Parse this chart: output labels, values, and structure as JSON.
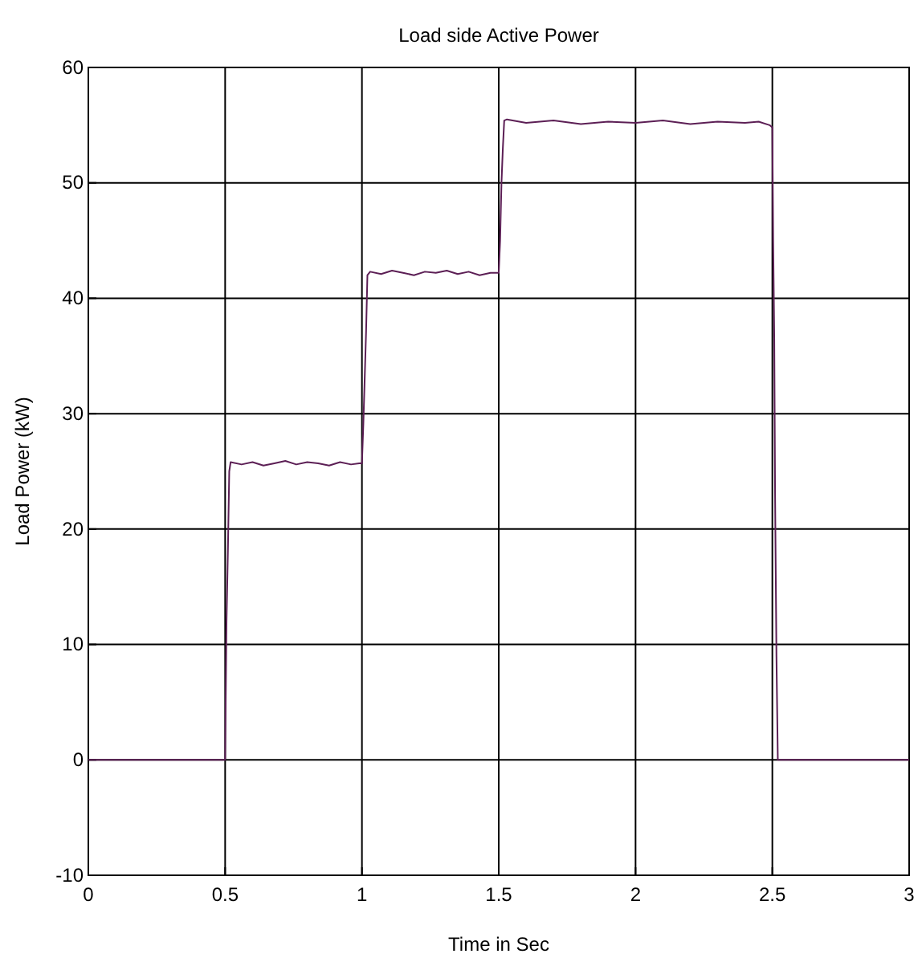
{
  "chart_data": {
    "type": "line",
    "title": "Load side Active Power",
    "xlabel": "Time in Sec",
    "ylabel": "Load Power (kW)",
    "xlim": [
      0,
      3
    ],
    "ylim": [
      -10,
      60
    ],
    "xticks": [
      0,
      0.5,
      1,
      1.5,
      2,
      2.5,
      3
    ],
    "yticks": [
      -10,
      0,
      10,
      20,
      30,
      40,
      50,
      60
    ],
    "grid": true,
    "line_style": "solid",
    "series": [
      {
        "color": "#5c1f55",
        "x": [
          0,
          0.5,
          0.502,
          0.505,
          0.51,
          0.515,
          0.52,
          0.56,
          0.6,
          0.64,
          0.68,
          0.72,
          0.76,
          0.8,
          0.84,
          0.88,
          0.92,
          0.96,
          0.99,
          1.0,
          1.005,
          1.01,
          1.015,
          1.02,
          1.03,
          1.07,
          1.11,
          1.15,
          1.19,
          1.23,
          1.27,
          1.31,
          1.35,
          1.39,
          1.43,
          1.47,
          1.5,
          1.505,
          1.51,
          1.515,
          1.52,
          1.53,
          1.6,
          1.7,
          1.8,
          1.9,
          2.0,
          2.1,
          2.2,
          2.3,
          2.4,
          2.45,
          2.49,
          2.5,
          2.503,
          2.507,
          2.51,
          2.515,
          2.52,
          3
        ],
        "values": [
          0,
          0,
          5,
          12,
          18,
          25,
          25.8,
          25.6,
          25.8,
          25.5,
          25.7,
          25.9,
          25.6,
          25.8,
          25.7,
          25.5,
          25.8,
          25.6,
          25.7,
          25.7,
          29,
          33,
          37,
          42,
          42.3,
          42.1,
          42.4,
          42.2,
          42.0,
          42.3,
          42.2,
          42.4,
          42.1,
          42.3,
          42.0,
          42.2,
          42.2,
          45,
          50,
          53,
          55.4,
          55.5,
          55.2,
          55.4,
          55.1,
          55.3,
          55.2,
          55.4,
          55.1,
          55.3,
          55.2,
          55.3,
          55.0,
          54.8,
          45,
          36.5,
          23,
          9,
          0,
          0
        ]
      }
    ]
  }
}
